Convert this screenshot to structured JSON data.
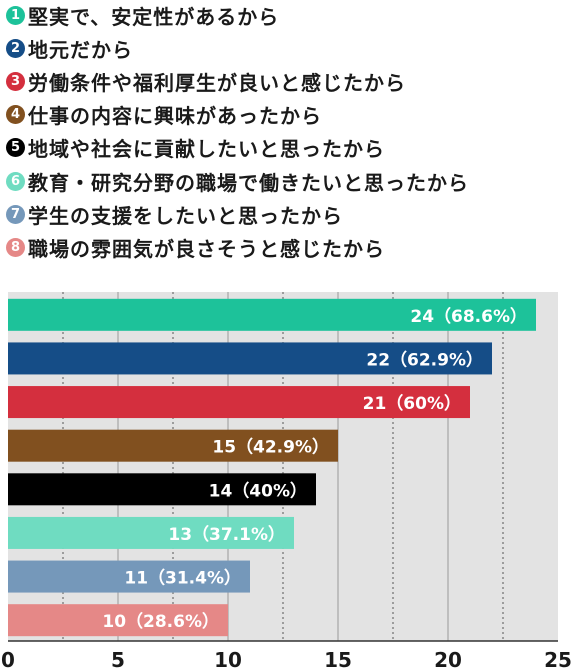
{
  "legend": {
    "items": [
      {
        "number": "1",
        "label": "堅実で、安定性があるから",
        "color": "#1dc29a"
      },
      {
        "number": "2",
        "label": "地元だから",
        "color": "#154d87"
      },
      {
        "number": "3",
        "label": "労働条件や福利厚生が良いと感じたから",
        "color": "#d42f3e"
      },
      {
        "number": "4",
        "label": "仕事の内容に興味があったから",
        "color": "#81501f"
      },
      {
        "number": "5",
        "label": "地域や社会に貢献したいと思ったから",
        "color": "#000000"
      },
      {
        "number": "6",
        "label": "教育・研究分野の職場で働きたいと思ったから",
        "color": "#6fdcc1"
      },
      {
        "number": "7",
        "label": "学生の支援をしたいと思ったから",
        "color": "#7598ba"
      },
      {
        "number": "8",
        "label": "職場の雰囲気が良さそうと感じたから",
        "color": "#e58887"
      }
    ]
  },
  "chart_data": {
    "type": "bar",
    "orientation": "horizontal",
    "categories": [
      "1",
      "2",
      "3",
      "4",
      "5",
      "6",
      "7",
      "8"
    ],
    "values": [
      24,
      22,
      21,
      15,
      14,
      13,
      11,
      10
    ],
    "value_labels": [
      "24（68.6%）",
      "22（62.9%）",
      "21（60%）",
      "15（42.9%）",
      "14（40%）",
      "13（37.1%）",
      "11（31.4%）",
      "10（28.6%）"
    ],
    "colors": [
      "#1dc29a",
      "#154d87",
      "#d42f3e",
      "#81501f",
      "#000000",
      "#6fdcc1",
      "#7598ba",
      "#e58887"
    ],
    "xlim": [
      0,
      25
    ],
    "xticks": [
      "0",
      "5",
      "10",
      "15",
      "20",
      "25"
    ],
    "grid": true,
    "background": "#e3e3e3"
  }
}
